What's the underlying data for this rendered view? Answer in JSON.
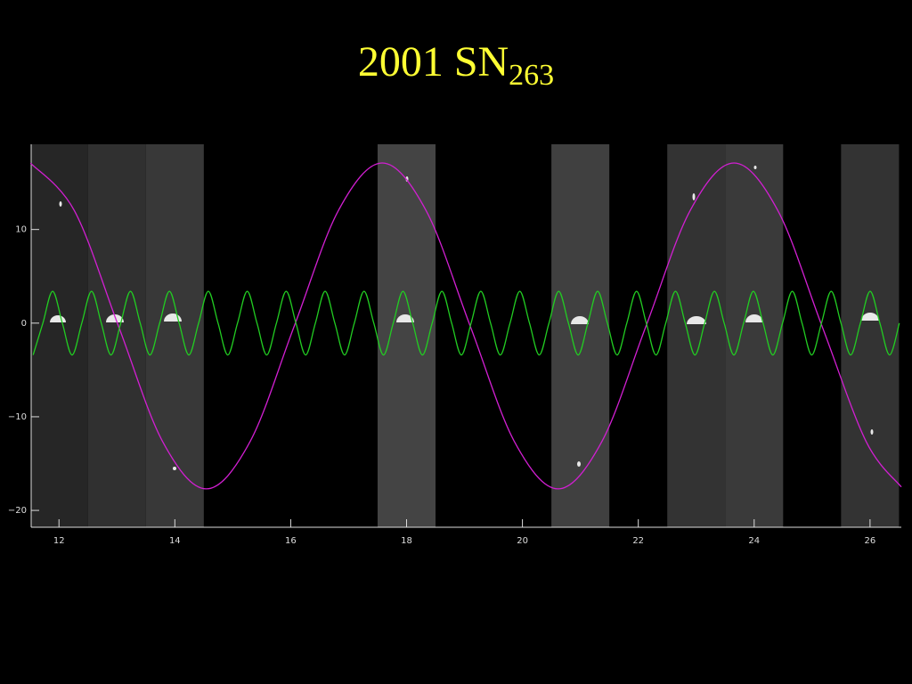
{
  "chart_data": {
    "type": "line",
    "title": "2001 SN",
    "title_subscript": "263",
    "xlim": [
      11.52,
      26.54
    ],
    "ylim": [
      -21.8,
      19.1
    ],
    "xticks": [
      12,
      14,
      16,
      18,
      20,
      22,
      24,
      26
    ],
    "yticks": [
      {
        "value": -20,
        "label": "−20"
      },
      {
        "value": -10,
        "label": "−10"
      },
      0,
      10
    ],
    "image_strips": [
      {
        "x": [
          11.52,
          12.5
        ],
        "color": "#262626"
      },
      {
        "x": [
          12.5,
          13.5
        ],
        "color": "#303030"
      },
      {
        "x": [
          13.5,
          14.5
        ],
        "color": "#383838"
      },
      {
        "x": [
          17.5,
          18.5
        ],
        "color": "#444444"
      },
      {
        "x": [
          20.5,
          21.5
        ],
        "color": "#404040"
      },
      {
        "x": [
          22.5,
          23.5
        ],
        "color": "#333333"
      },
      {
        "x": [
          23.5,
          24.5
        ],
        "color": "#3a3a3a"
      },
      {
        "x": [
          25.5,
          26.5
        ],
        "color": "#333333"
      }
    ],
    "series": [
      {
        "color": "#d21fd2",
        "x": [
          11.508,
          12.267,
          13.026,
          13.785,
          14.544,
          15.303,
          16.062,
          16.821,
          17.58,
          18.339,
          19.098,
          19.857,
          20.616,
          21.375,
          22.134,
          22.893,
          23.652,
          24.411,
          25.17,
          25.929,
          26.54
        ],
        "values": [
          17.1,
          12.0,
          -0.3,
          -12.6,
          -17.7,
          -12.6,
          -0.3,
          12.0,
          17.1,
          12.0,
          -0.3,
          -12.6,
          -17.7,
          -12.6,
          -0.3,
          12.0,
          17.1,
          12.0,
          -0.3,
          -12.6,
          -17.5
        ]
      },
      {
        "color": "#22cc22",
        "x": [
          11.554,
          11.722,
          11.89,
          12.058,
          12.226,
          12.394,
          12.562,
          12.73,
          12.898,
          13.066,
          13.234,
          13.402,
          13.57,
          13.738,
          13.906,
          14.074,
          14.242,
          14.41,
          14.578,
          14.746,
          14.914,
          15.082,
          15.25,
          15.418,
          15.586,
          15.754,
          15.922,
          16.09,
          16.258,
          16.426,
          16.594,
          16.762,
          16.93,
          17.098,
          17.266,
          17.434,
          17.602,
          17.77,
          17.938,
          18.106,
          18.274,
          18.442,
          18.61,
          18.778,
          18.946,
          19.114,
          19.282,
          19.45,
          19.618,
          19.786,
          19.954,
          20.122,
          20.29,
          20.458,
          20.626,
          20.794,
          20.962,
          21.13,
          21.298,
          21.466,
          21.634,
          21.802,
          21.97,
          22.138,
          22.306,
          22.474,
          22.642,
          22.81,
          22.978,
          23.146,
          23.314,
          23.482,
          23.65,
          23.818,
          23.986,
          24.154,
          24.322,
          24.49,
          24.658,
          24.826,
          24.994,
          25.162,
          25.33,
          25.498,
          25.666,
          25.834,
          26.002,
          26.17,
          26.338,
          26.506
        ],
        "values": [
          -3.4,
          0,
          3.4,
          0,
          -3.4,
          0,
          3.4,
          0,
          -3.4,
          0,
          3.4,
          0,
          -3.4,
          0,
          3.4,
          0,
          -3.4,
          0,
          3.4,
          0,
          -3.4,
          0,
          3.4,
          0,
          -3.4,
          0,
          3.4,
          0,
          -3.4,
          0,
          3.4,
          0,
          -3.4,
          0,
          3.4,
          0,
          -3.4,
          0,
          3.4,
          0,
          -3.4,
          0,
          3.4,
          0,
          -3.4,
          0,
          3.4,
          0,
          -3.4,
          0,
          3.4,
          0,
          -3.4,
          0,
          3.4,
          0,
          -3.4,
          0,
          3.4,
          0,
          -3.4,
          0,
          3.4,
          0,
          -3.4,
          0,
          3.4,
          0,
          -3.4,
          0,
          3.4,
          0,
          -3.4,
          0,
          3.4,
          0,
          -3.4,
          0,
          3.4,
          0,
          -3.4,
          0,
          3.4,
          0,
          -3.4,
          0,
          3.4,
          0,
          -3.4,
          0
        ]
      }
    ]
  }
}
